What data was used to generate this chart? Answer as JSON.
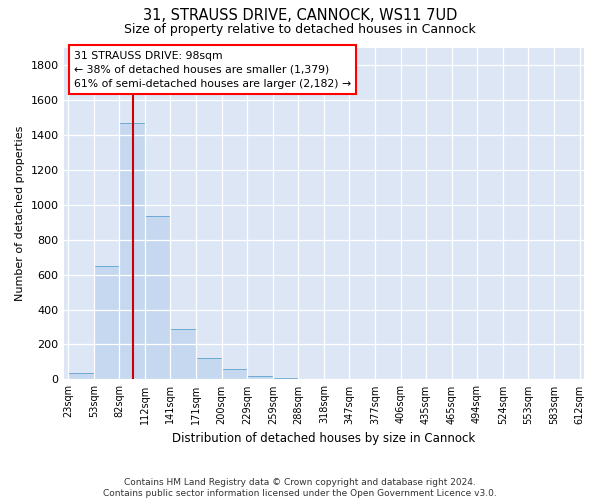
{
  "title": "31, STRAUSS DRIVE, CANNOCK, WS11 7UD",
  "subtitle": "Size of property relative to detached houses in Cannock",
  "xlabel": "Distribution of detached houses by size in Cannock",
  "ylabel": "Number of detached properties",
  "categories": [
    "23sqm",
    "53sqm",
    "82sqm",
    "112sqm",
    "141sqm",
    "171sqm",
    "200sqm",
    "229sqm",
    "259sqm",
    "288sqm",
    "318sqm",
    "347sqm",
    "377sqm",
    "406sqm",
    "435sqm",
    "465sqm",
    "494sqm",
    "524sqm",
    "553sqm",
    "583sqm",
    "612sqm"
  ],
  "bin_edges": [
    23,
    53,
    82,
    112,
    141,
    171,
    200,
    229,
    259,
    288,
    318,
    347,
    377,
    406,
    435,
    465,
    494,
    524,
    553,
    583,
    612
  ],
  "bar_heights": [
    38,
    650,
    1470,
    935,
    290,
    125,
    60,
    22,
    10,
    0,
    0,
    0,
    0,
    0,
    0,
    0,
    0,
    0,
    0,
    0
  ],
  "bar_color": "#c5d8f0",
  "bar_edgecolor": "#6aaad4",
  "vline_value": 98,
  "vline_color": "#cc0000",
  "annotation_text": "31 STRAUSS DRIVE: 98sqm\n← 38% of detached houses are smaller (1,379)\n61% of semi-detached houses are larger (2,182) →",
  "ylim": [
    0,
    1900
  ],
  "yticks": [
    0,
    200,
    400,
    600,
    800,
    1000,
    1200,
    1400,
    1600,
    1800
  ],
  "bg_color": "#dce6f5",
  "grid_color": "#ffffff",
  "footer_line1": "Contains HM Land Registry data © Crown copyright and database right 2024.",
  "footer_line2": "Contains public sector information licensed under the Open Government Licence v3.0."
}
